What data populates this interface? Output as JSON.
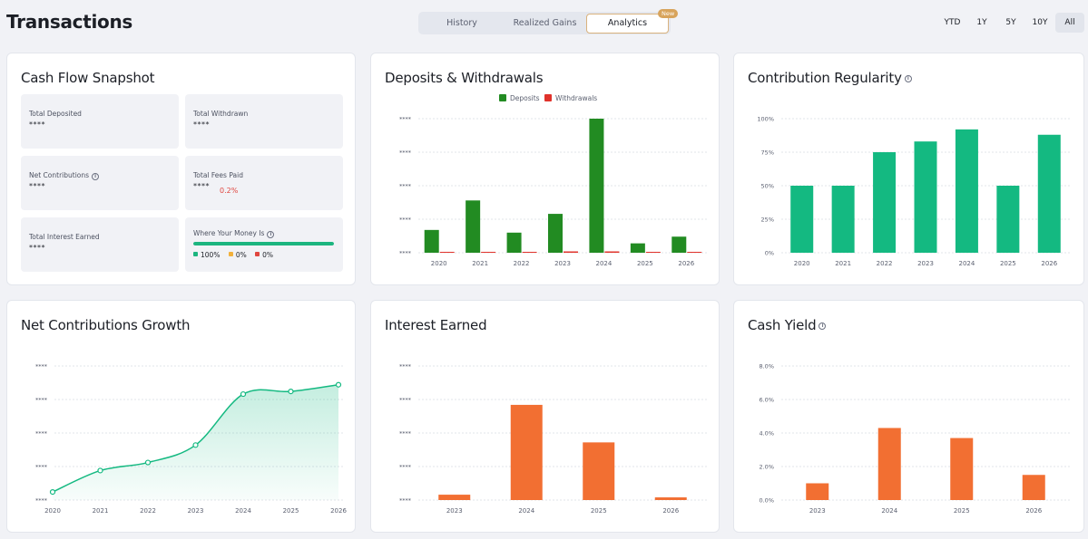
{
  "header": {
    "title": "Transactions"
  },
  "tabs": [
    {
      "label": "History"
    },
    {
      "label": "Realized Gains"
    },
    {
      "label": "Analytics"
    }
  ],
  "tab_badge": "New",
  "ranges": [
    "YTD",
    "1Y",
    "5Y",
    "10Y",
    "All"
  ],
  "snapshot": {
    "title": "Cash Flow Snapshot",
    "total_deposited": {
      "label": "Total Deposited",
      "value": "****"
    },
    "total_withdrawn": {
      "label": "Total Withdrawn",
      "value": "****"
    },
    "net_contributions": {
      "label": "Net Contributions",
      "value": "****"
    },
    "total_fees": {
      "label": "Total Fees Paid",
      "value": "****",
      "pct": "0.2%"
    },
    "total_interest": {
      "label": "Total Interest Earned",
      "value": "****"
    },
    "where_money": {
      "label": "Where Your Money Is",
      "progress": 1.0,
      "items": [
        {
          "value": "100%",
          "color": "#1cb57f"
        },
        {
          "value": "0%",
          "color": "#f2b13c"
        },
        {
          "value": "0%",
          "color": "#e0463f"
        }
      ]
    }
  },
  "cards": {
    "deposits_title": "Deposits & Withdrawals",
    "regularity_title": "Contribution Regularity",
    "growth_title": "Net Contributions Growth",
    "interest_title": "Interest Earned",
    "yield_title": "Cash Yield"
  },
  "colors": {
    "green": "#228b22",
    "red": "#e0322b",
    "teal": "#14b981",
    "orange": "#f26f32"
  },
  "chart_data": [
    {
      "type": "bar",
      "title": "Deposits & Withdrawals",
      "categories": [
        "2020",
        "2021",
        "2022",
        "2023",
        "2024",
        "2025",
        "2026"
      ],
      "series": [
        {
          "name": "Deposits",
          "values": [
            0.17,
            0.39,
            0.15,
            0.29,
            1.0,
            0.07,
            0.12
          ]
        },
        {
          "name": "Withdrawals",
          "values": [
            0,
            0,
            0,
            0.01,
            0.01,
            0,
            0
          ]
        }
      ],
      "y_tick_labels": [
        "****",
        "****",
        "****",
        "****",
        "****"
      ],
      "legend": "top"
    },
    {
      "type": "bar",
      "title": "Contribution Regularity",
      "categories": [
        "2020",
        "2021",
        "2022",
        "2023",
        "2024",
        "2025",
        "2026"
      ],
      "values": [
        50,
        50,
        75,
        83,
        92,
        50,
        88
      ],
      "y_tick_labels": [
        "100%",
        "75%",
        "50%",
        "25%",
        "0%"
      ],
      "ylim": [
        0,
        100
      ]
    },
    {
      "type": "area",
      "title": "Net Contributions Growth",
      "categories": [
        "2020",
        "2021",
        "2022",
        "2023",
        "2024",
        "2025",
        "2026"
      ],
      "values": [
        0.06,
        0.22,
        0.28,
        0.41,
        0.79,
        0.81,
        0.86
      ],
      "y_tick_labels": [
        "****",
        "****",
        "****",
        "****",
        "****"
      ]
    },
    {
      "type": "bar",
      "title": "Interest Earned",
      "categories": [
        "2023",
        "2024",
        "2025",
        "2026"
      ],
      "values": [
        0.04,
        0.71,
        0.43,
        0.02
      ],
      "y_tick_labels": [
        "****",
        "****",
        "****",
        "****",
        "****"
      ]
    },
    {
      "type": "bar",
      "title": "Cash Yield",
      "categories": [
        "2023",
        "2024",
        "2025",
        "2026"
      ],
      "values": [
        1.0,
        4.3,
        3.7,
        1.5
      ],
      "y_tick_labels": [
        "8.0%",
        "6.0%",
        "4.0%",
        "2.0%",
        "0.0%"
      ],
      "ylim": [
        0,
        8
      ]
    }
  ]
}
